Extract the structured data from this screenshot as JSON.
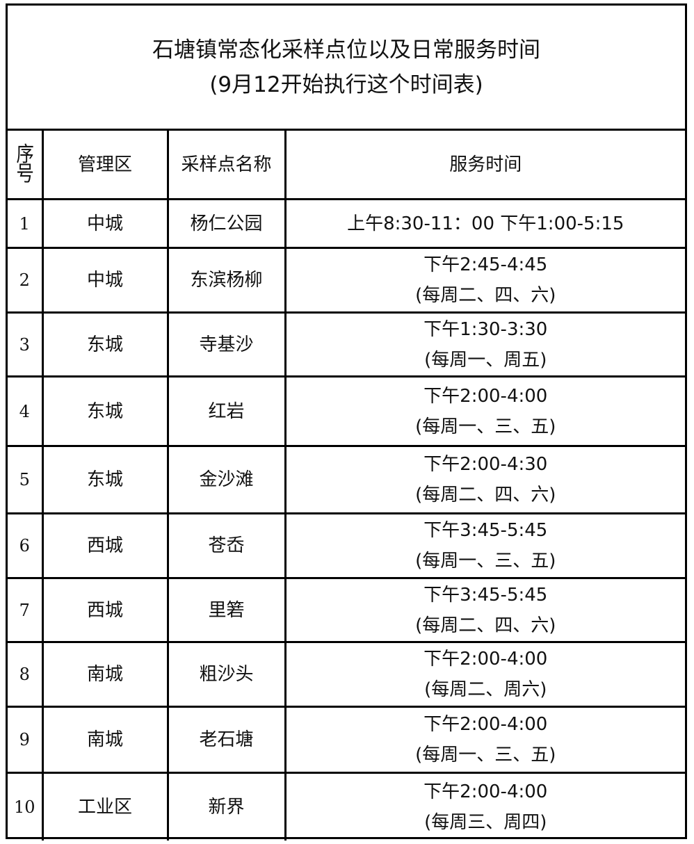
{
  "title": {
    "line1": "石塘镇常态化采样点位以及日常服务时间",
    "line2": "(9月12开始执行这个时间表)"
  },
  "headers": {
    "seq_a": "序",
    "seq_b": "号",
    "district": "管理区",
    "site": "采样点名称",
    "time": "服务时间"
  },
  "rows": [
    {
      "no": "1",
      "district": "中城",
      "site": "杨仁公园",
      "time": "上午8:30-11：00 下午1:00-5:15",
      "days": ""
    },
    {
      "no": "2",
      "district": "中城",
      "site": "东滨杨柳",
      "time": "下午2:45-4:45",
      "days": "(每周二、四、六)"
    },
    {
      "no": "3",
      "district": "东城",
      "site": "寺基沙",
      "time": "下午1:30-3:30",
      "days": "(每周一、周五)"
    },
    {
      "no": "4",
      "district": "东城",
      "site": "红岩",
      "time": "下午2:00-4:00",
      "days": "(每周一、三、五)"
    },
    {
      "no": "5",
      "district": "东城",
      "site": "金沙滩",
      "time": "下午2:00-4:30",
      "days": "(每周二、四、六)"
    },
    {
      "no": "6",
      "district": "西城",
      "site": "苍岙",
      "time": "下午3:45-5:45",
      "days": "(每周一、三、五)"
    },
    {
      "no": "7",
      "district": "西城",
      "site": "里箬",
      "time": "下午3:45-5:45",
      "days": "(每周二、四、六)"
    },
    {
      "no": "8",
      "district": "南城",
      "site": "粗沙头",
      "time": "下午2:00-4:00",
      "days": "(每周二、周六)"
    },
    {
      "no": "9",
      "district": "南城",
      "site": "老石塘",
      "time": "下午2:00-4:00",
      "days": "(每周一、三、五)"
    },
    {
      "no": "10",
      "district": "工业区",
      "site": "新界",
      "time": "下午2:00-4:00",
      "days": "(每周三、周四)"
    }
  ]
}
